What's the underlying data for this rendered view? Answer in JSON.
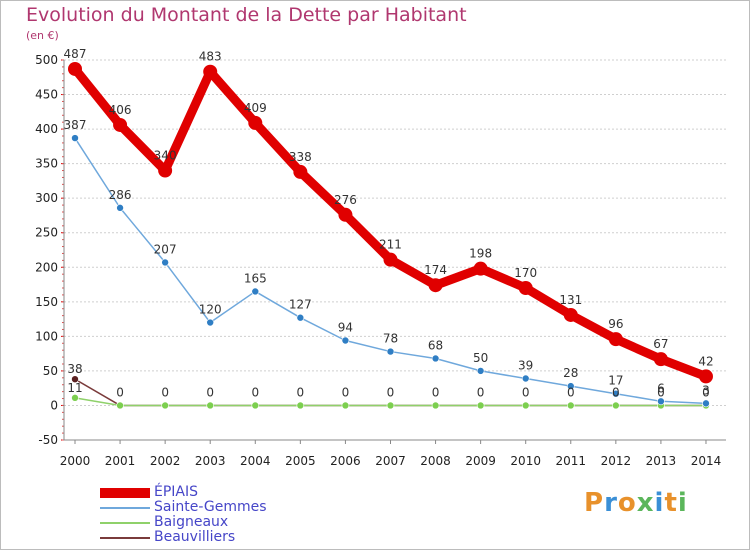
{
  "title": "Evolution du Montant de la Dette par Habitant",
  "subtitle": "(en €)",
  "logo": {
    "text": "Proxiti",
    "colors": [
      "#e8912b",
      "#3a8fd6",
      "#e8912b",
      "#5bb65b",
      "#3a8fd6",
      "#e8912b",
      "#5bb65b"
    ]
  },
  "chart_data": {
    "type": "line",
    "categories": [
      "2000",
      "2001",
      "2002",
      "2003",
      "2004",
      "2005",
      "2006",
      "2007",
      "2008",
      "2009",
      "2010",
      "2011",
      "2012",
      "2013",
      "2014"
    ],
    "ylim": [
      -50,
      500
    ],
    "yticks": [
      -50,
      0,
      50,
      100,
      150,
      200,
      250,
      300,
      350,
      400,
      450,
      500
    ],
    "grid": "horizontal",
    "legend_position": "bottom-left",
    "series": [
      {
        "name": "ÉPIAIS",
        "color": "#e00000",
        "values": [
          487,
          406,
          340,
          483,
          409,
          338,
          276,
          211,
          174,
          198,
          170,
          131,
          96,
          67,
          42
        ]
      },
      {
        "name": "Sainte-Gemmes",
        "color": "#6fa8dc",
        "values": [
          387,
          286,
          207,
          120,
          165,
          127,
          94,
          78,
          68,
          50,
          39,
          28,
          17,
          6,
          3
        ]
      },
      {
        "name": "Baigneaux",
        "color": "#8fd16a",
        "values": [
          11,
          0,
          0,
          0,
          0,
          0,
          0,
          0,
          0,
          0,
          0,
          0,
          0,
          0,
          0
        ]
      },
      {
        "name": "Beauvilliers",
        "color": "#7a3b3b",
        "values": [
          38,
          0,
          0,
          0,
          0,
          0,
          0,
          0,
          0,
          0,
          0,
          0,
          0,
          0,
          0
        ]
      }
    ]
  }
}
